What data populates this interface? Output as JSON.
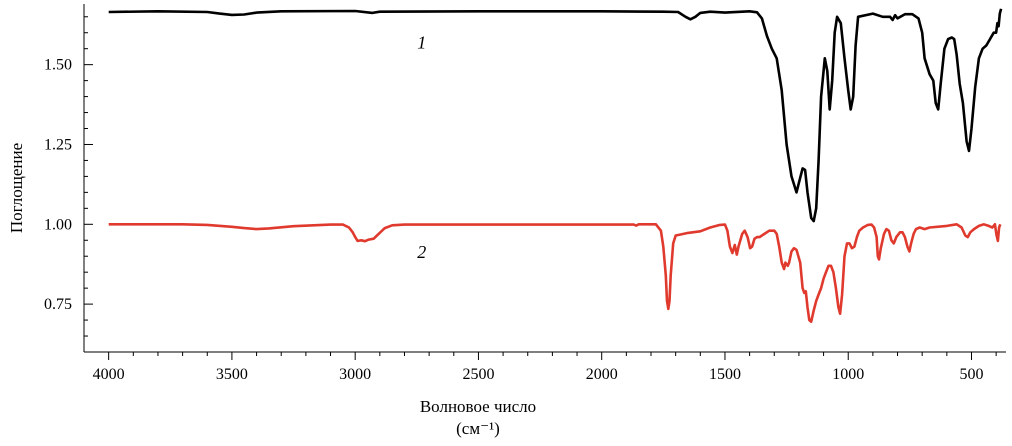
{
  "chart_data": {
    "type": "line",
    "title": "",
    "xlabel": "Волновое число",
    "xlabel_unit": "(см⁻¹)",
    "ylabel": "Поглощение",
    "xlim": [
      4100,
      360
    ],
    "ylim": [
      0.6,
      1.69
    ],
    "x_reversed": true,
    "x_ticks": [
      4000,
      3500,
      3000,
      2500,
      2000,
      1500,
      1000,
      500
    ],
    "x_tick_labels": [
      "4000",
      "3500",
      "3000",
      "2500",
      "2000",
      "1500",
      "1000",
      "500"
    ],
    "y_ticks": [
      0.75,
      1.0,
      1.25,
      1.5
    ],
    "y_tick_labels": [
      "0.75",
      "1.00",
      "1.25",
      "1.50"
    ],
    "grid": false,
    "series": [
      {
        "name": "1",
        "color": "#000000",
        "label_pos": [
          2730,
          1.55
        ],
        "points": [
          [
            4000,
            1.665
          ],
          [
            3800,
            1.667
          ],
          [
            3600,
            1.665
          ],
          [
            3550,
            1.66
          ],
          [
            3500,
            1.656
          ],
          [
            3450,
            1.657
          ],
          [
            3400,
            1.663
          ],
          [
            3300,
            1.667
          ],
          [
            3000,
            1.668
          ],
          [
            2930,
            1.662
          ],
          [
            2900,
            1.666
          ],
          [
            2500,
            1.667
          ],
          [
            2000,
            1.667
          ],
          [
            1750,
            1.666
          ],
          [
            1690,
            1.665
          ],
          [
            1660,
            1.65
          ],
          [
            1640,
            1.642
          ],
          [
            1620,
            1.65
          ],
          [
            1600,
            1.662
          ],
          [
            1560,
            1.666
          ],
          [
            1500,
            1.663
          ],
          [
            1400,
            1.667
          ],
          [
            1370,
            1.664
          ],
          [
            1350,
            1.645
          ],
          [
            1330,
            1.59
          ],
          [
            1310,
            1.55
          ],
          [
            1290,
            1.52
          ],
          [
            1270,
            1.42
          ],
          [
            1250,
            1.25
          ],
          [
            1230,
            1.15
          ],
          [
            1210,
            1.1
          ],
          [
            1200,
            1.13
          ],
          [
            1185,
            1.175
          ],
          [
            1175,
            1.17
          ],
          [
            1165,
            1.1
          ],
          [
            1150,
            1.02
          ],
          [
            1140,
            1.01
          ],
          [
            1130,
            1.05
          ],
          [
            1120,
            1.2
          ],
          [
            1110,
            1.4
          ],
          [
            1095,
            1.52
          ],
          [
            1085,
            1.48
          ],
          [
            1075,
            1.36
          ],
          [
            1065,
            1.45
          ],
          [
            1055,
            1.6
          ],
          [
            1045,
            1.65
          ],
          [
            1030,
            1.63
          ],
          [
            1015,
            1.52
          ],
          [
            1000,
            1.42
          ],
          [
            990,
            1.36
          ],
          [
            980,
            1.4
          ],
          [
            970,
            1.56
          ],
          [
            960,
            1.65
          ],
          [
            900,
            1.66
          ],
          [
            860,
            1.65
          ],
          [
            830,
            1.65
          ],
          [
            820,
            1.64
          ],
          [
            810,
            1.655
          ],
          [
            800,
            1.645
          ],
          [
            770,
            1.658
          ],
          [
            740,
            1.658
          ],
          [
            715,
            1.645
          ],
          [
            700,
            1.6
          ],
          [
            690,
            1.52
          ],
          [
            670,
            1.47
          ],
          [
            655,
            1.45
          ],
          [
            645,
            1.38
          ],
          [
            635,
            1.36
          ],
          [
            625,
            1.44
          ],
          [
            610,
            1.55
          ],
          [
            595,
            1.58
          ],
          [
            580,
            1.585
          ],
          [
            570,
            1.58
          ],
          [
            560,
            1.53
          ],
          [
            548,
            1.44
          ],
          [
            535,
            1.38
          ],
          [
            520,
            1.26
          ],
          [
            510,
            1.23
          ],
          [
            500,
            1.3
          ],
          [
            485,
            1.43
          ],
          [
            470,
            1.52
          ],
          [
            455,
            1.55
          ],
          [
            440,
            1.56
          ],
          [
            425,
            1.58
          ],
          [
            410,
            1.6
          ],
          [
            400,
            1.6
          ],
          [
            395,
            1.63
          ],
          [
            390,
            1.62
          ],
          [
            385,
            1.66
          ],
          [
            380,
            1.675
          ]
        ]
      },
      {
        "name": "2",
        "color": "#e03a2e",
        "label_pos": [
          2730,
          0.895
        ],
        "points": [
          [
            4000,
            1.0
          ],
          [
            3700,
            1.0
          ],
          [
            3600,
            0.998
          ],
          [
            3500,
            0.992
          ],
          [
            3450,
            0.988
          ],
          [
            3400,
            0.985
          ],
          [
            3350,
            0.987
          ],
          [
            3250,
            0.994
          ],
          [
            3100,
            0.999
          ],
          [
            3050,
            0.999
          ],
          [
            3025,
            0.99
          ],
          [
            3010,
            0.975
          ],
          [
            3000,
            0.96
          ],
          [
            2990,
            0.948
          ],
          [
            2975,
            0.95
          ],
          [
            2960,
            0.947
          ],
          [
            2945,
            0.952
          ],
          [
            2925,
            0.955
          ],
          [
            2905,
            0.97
          ],
          [
            2880,
            0.988
          ],
          [
            2850,
            0.997
          ],
          [
            2800,
            0.999
          ],
          [
            2500,
            0.999
          ],
          [
            2000,
            0.999
          ],
          [
            1870,
            0.999
          ],
          [
            1860,
            0.996
          ],
          [
            1850,
            1.0
          ],
          [
            1780,
            1.0
          ],
          [
            1760,
            0.98
          ],
          [
            1750,
            0.93
          ],
          [
            1740,
            0.84
          ],
          [
            1735,
            0.76
          ],
          [
            1730,
            0.735
          ],
          [
            1725,
            0.76
          ],
          [
            1720,
            0.84
          ],
          [
            1710,
            0.94
          ],
          [
            1700,
            0.965
          ],
          [
            1680,
            0.968
          ],
          [
            1650,
            0.973
          ],
          [
            1600,
            0.978
          ],
          [
            1560,
            0.99
          ],
          [
            1520,
            0.998
          ],
          [
            1500,
            0.999
          ],
          [
            1490,
            0.98
          ],
          [
            1480,
            0.93
          ],
          [
            1470,
            0.91
          ],
          [
            1460,
            0.935
          ],
          [
            1452,
            0.905
          ],
          [
            1445,
            0.93
          ],
          [
            1430,
            0.97
          ],
          [
            1420,
            0.98
          ],
          [
            1408,
            0.96
          ],
          [
            1398,
            0.925
          ],
          [
            1390,
            0.93
          ],
          [
            1380,
            0.955
          ],
          [
            1370,
            0.96
          ],
          [
            1360,
            0.96
          ],
          [
            1340,
            0.97
          ],
          [
            1320,
            0.98
          ],
          [
            1300,
            0.98
          ],
          [
            1290,
            0.97
          ],
          [
            1280,
            0.93
          ],
          [
            1270,
            0.88
          ],
          [
            1260,
            0.86
          ],
          [
            1255,
            0.88
          ],
          [
            1245,
            0.87
          ],
          [
            1240,
            0.88
          ],
          [
            1230,
            0.915
          ],
          [
            1220,
            0.925
          ],
          [
            1210,
            0.92
          ],
          [
            1195,
            0.88
          ],
          [
            1185,
            0.8
          ],
          [
            1178,
            0.785
          ],
          [
            1172,
            0.79
          ],
          [
            1165,
            0.74
          ],
          [
            1158,
            0.7
          ],
          [
            1150,
            0.695
          ],
          [
            1140,
            0.73
          ],
          [
            1130,
            0.76
          ],
          [
            1120,
            0.78
          ],
          [
            1110,
            0.8
          ],
          [
            1100,
            0.83
          ],
          [
            1090,
            0.85
          ],
          [
            1080,
            0.87
          ],
          [
            1070,
            0.87
          ],
          [
            1060,
            0.85
          ],
          [
            1050,
            0.8
          ],
          [
            1040,
            0.74
          ],
          [
            1033,
            0.72
          ],
          [
            1025,
            0.78
          ],
          [
            1015,
            0.9
          ],
          [
            1005,
            0.94
          ],
          [
            995,
            0.94
          ],
          [
            985,
            0.925
          ],
          [
            975,
            0.93
          ],
          [
            965,
            0.96
          ],
          [
            955,
            0.98
          ],
          [
            940,
            0.99
          ],
          [
            920,
            0.998
          ],
          [
            905,
            0.999
          ],
          [
            895,
            0.99
          ],
          [
            885,
            0.96
          ],
          [
            880,
            0.9
          ],
          [
            875,
            0.89
          ],
          [
            868,
            0.925
          ],
          [
            855,
            0.97
          ],
          [
            845,
            0.985
          ],
          [
            835,
            0.98
          ],
          [
            825,
            0.95
          ],
          [
            815,
            0.94
          ],
          [
            805,
            0.96
          ],
          [
            790,
            0.975
          ],
          [
            780,
            0.975
          ],
          [
            770,
            0.96
          ],
          [
            760,
            0.93
          ],
          [
            752,
            0.915
          ],
          [
            745,
            0.94
          ],
          [
            735,
            0.97
          ],
          [
            725,
            0.985
          ],
          [
            710,
            0.99
          ],
          [
            690,
            0.985
          ],
          [
            670,
            0.99
          ],
          [
            600,
            0.995
          ],
          [
            560,
            1.0
          ],
          [
            540,
            0.99
          ],
          [
            525,
            0.965
          ],
          [
            515,
            0.96
          ],
          [
            505,
            0.975
          ],
          [
            490,
            0.985
          ],
          [
            470,
            0.995
          ],
          [
            450,
            1.0
          ],
          [
            430,
            0.995
          ],
          [
            415,
            0.99
          ],
          [
            405,
            1.0
          ],
          [
            398,
            0.965
          ],
          [
            393,
            0.948
          ],
          [
            388,
            0.99
          ],
          [
            383,
            1.0
          ]
        ]
      }
    ]
  }
}
